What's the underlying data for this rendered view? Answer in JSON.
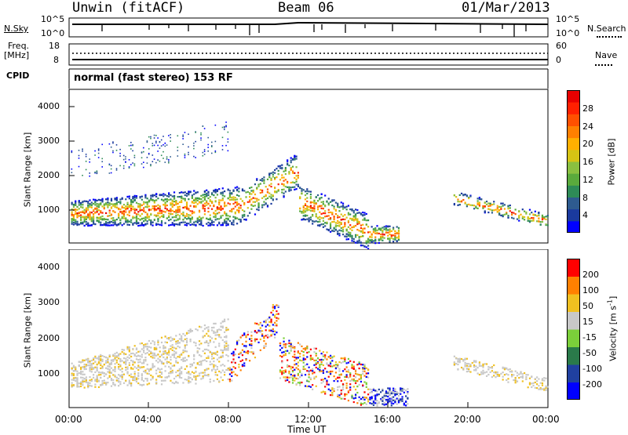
{
  "header": {
    "station": "Unwin (fitACF)",
    "beam": "Beam 06",
    "date": "01/Mar/2013"
  },
  "status_panels": {
    "nsky_label": "N.Sky",
    "nsky_ticks": [
      "10^5",
      "10^0"
    ],
    "nsearch_label": "N.Search",
    "nsearch_ticks": [
      "10^5",
      "10^0"
    ],
    "freq_label": "Freq.",
    "freq_unit": "[MHz]",
    "freq_ticks": [
      "18",
      "8"
    ],
    "nave_label": "Nave",
    "nave_ticks": [
      "60",
      "0"
    ],
    "cpid_label": "CPID",
    "cpid_text": "normal (fast stereo) 153 RF"
  },
  "chart_data": [
    {
      "type": "heatmap",
      "panel": "power",
      "ylabel": "Slant Range [km]",
      "ylim": [
        180,
        4600
      ],
      "yticks": [
        "4000",
        "3000",
        "2000",
        "1000"
      ],
      "xlim": [
        0,
        24
      ],
      "colorbar_label": "Power [dB]",
      "colorbar_ticks": [
        "28",
        "24",
        "20",
        "16",
        "12",
        "8",
        "4"
      ],
      "colors": [
        "#0000ff",
        "#1a3a9e",
        "#2e5b8f",
        "#2e8b57",
        "#5aaa3c",
        "#8ac040",
        "#d6c414",
        "#ffb000",
        "#ff8000",
        "#ff5000",
        "#ff2000",
        "#e80000"
      ]
    },
    {
      "type": "heatmap",
      "panel": "velocity",
      "ylabel": "Slant Range [km]",
      "ylim": [
        180,
        4600
      ],
      "yticks": [
        "4000",
        "3000",
        "2000",
        "1000"
      ],
      "xlim": [
        0,
        24
      ],
      "xlabel": "Time UT",
      "xticks": [
        "00:00",
        "04:00",
        "08:00",
        "12:00",
        "16:00",
        "20:00",
        "00:00"
      ],
      "colorbar_label": "Velocity [m s",
      "colorbar_label_sup": "-1",
      "colorbar_label_end": "]",
      "colorbar_ticks": [
        "200",
        "100",
        "50",
        "15",
        "-15",
        "-50",
        "-100",
        "-200"
      ],
      "colors": [
        "#0000ff",
        "#2040a0",
        "#2a7a4a",
        "#7bcf3a",
        "#c8c8c8",
        "#f0c020",
        "#ff8000",
        "#ff0000"
      ]
    }
  ]
}
